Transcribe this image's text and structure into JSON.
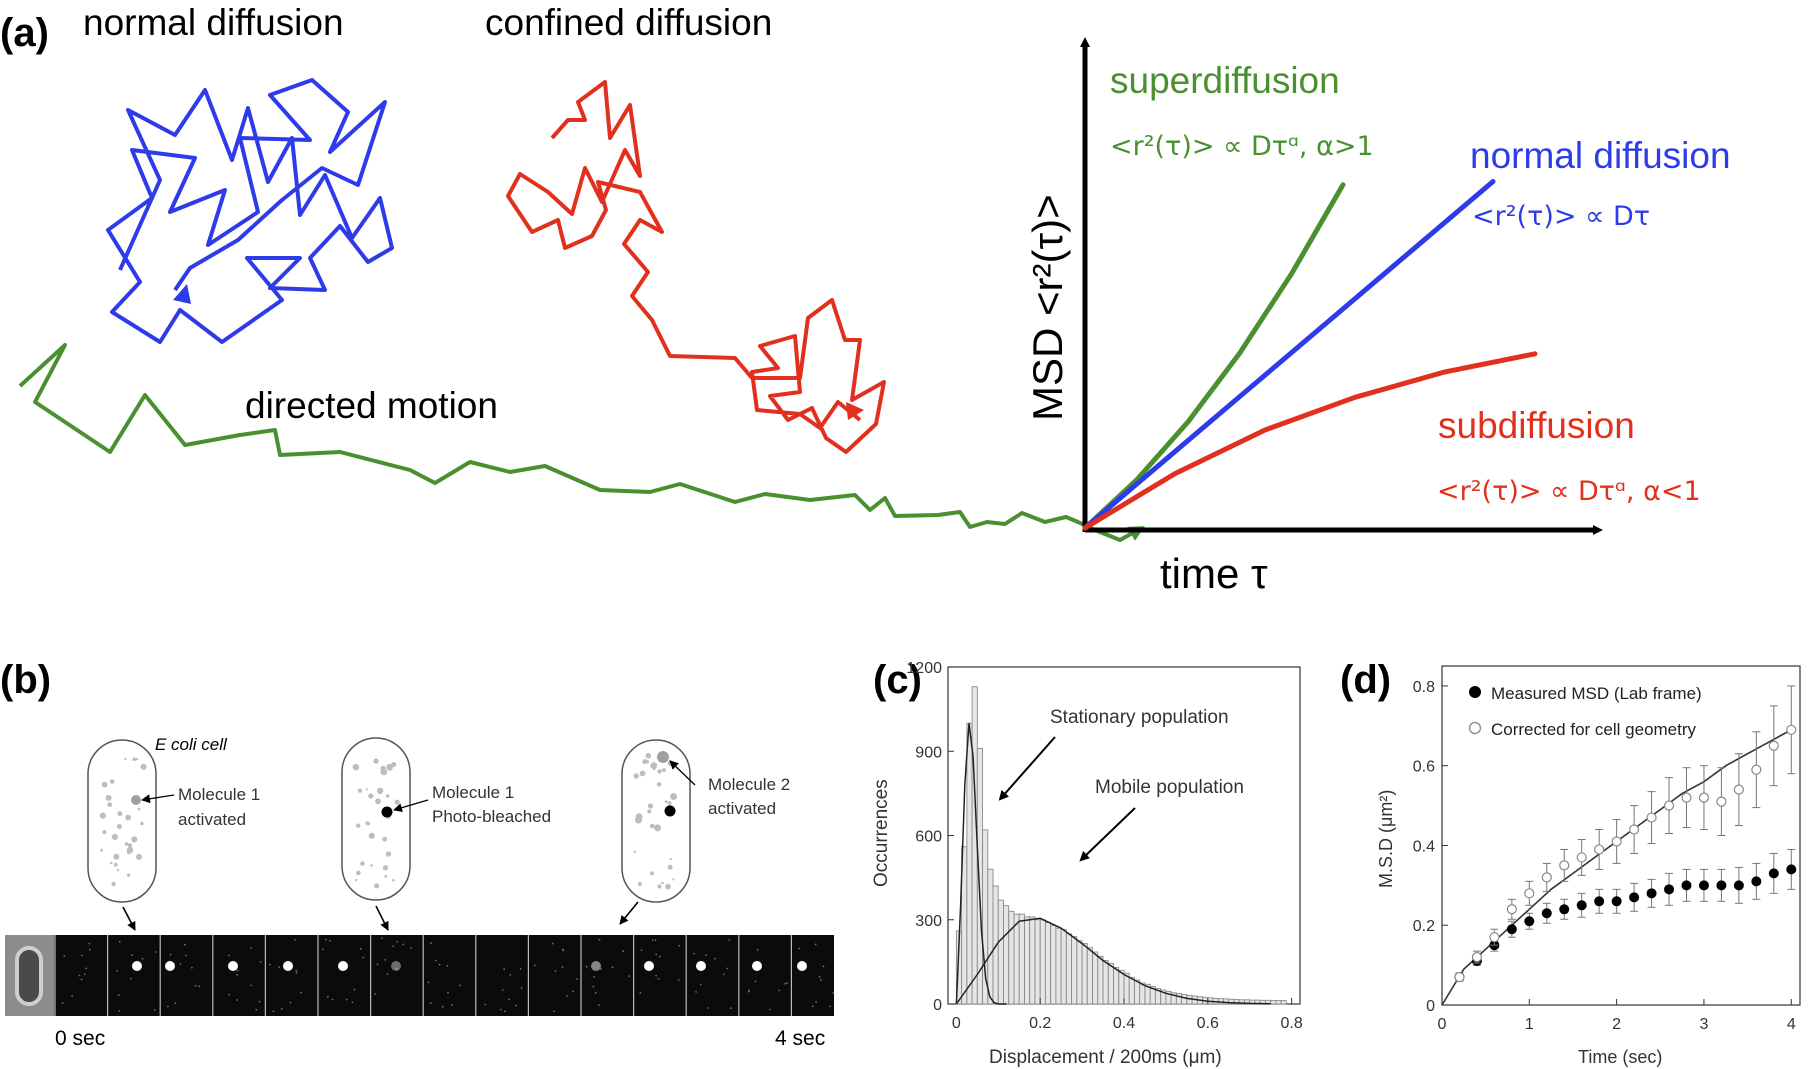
{
  "panel_a": {
    "label": "(a)",
    "walks": {
      "normal": "normal diffusion",
      "confined": "confined diffusion",
      "directed": "directed motion"
    },
    "msd": {
      "y_axis": "MSD <r²(τ)>",
      "x_axis": "time τ",
      "super": {
        "name": "superdiffusion",
        "formula": "<r²(τ)> ∝ Dτᵅ,  α>1",
        "color": "#4a9030"
      },
      "normal": {
        "name": "normal diffusion",
        "formula": "<r²(τ)> ∝ Dτ",
        "color": "#2d3be8"
      },
      "sub": {
        "name": "subdiffusion",
        "formula": "<r²(τ)> ∝ Dτᵅ,  α<1",
        "color": "#e1311e"
      }
    },
    "colors": {
      "normal_walk": "#2d3be8",
      "confined_walk": "#e1311e",
      "directed_walk": "#4a9030"
    }
  },
  "panel_b": {
    "label": "(b)",
    "cell1": {
      "title": "E coli cell",
      "annotation_line1": "Molecule 1",
      "annotation_line2": "activated"
    },
    "cell2": {
      "annotation_line1": "Molecule 1",
      "annotation_line2": "Photo-bleached"
    },
    "cell3": {
      "annotation_line1": "Molecule 2",
      "annotation_line2": "activated"
    },
    "time_start": "0 sec",
    "time_end": "4 sec"
  },
  "panel_c": {
    "label": "(c)",
    "annotation_stationary": "Stationary population",
    "annotation_mobile": "Mobile population"
  },
  "panel_d": {
    "label": "(d)",
    "legend_measured": "Measured MSD (Lab frame)",
    "legend_corrected": "Corrected for cell geometry"
  },
  "chart_data": [
    {
      "type": "line",
      "title": "",
      "xlabel": "time τ",
      "ylabel": "MSD <r²(τ)>",
      "x": [
        0,
        0.2,
        0.4,
        0.6,
        0.8,
        1.0
      ],
      "series": [
        {
          "name": "superdiffusion",
          "values": [
            0.0,
            0.14,
            0.31,
            0.51,
            0.74,
            1.0
          ]
        },
        {
          "name": "normal diffusion",
          "values": [
            0.0,
            0.14,
            0.28,
            0.42,
            0.56,
            0.7
          ]
        },
        {
          "name": "subdiffusion",
          "values": [
            0.0,
            0.15,
            0.27,
            0.36,
            0.43,
            0.48
          ]
        }
      ]
    },
    {
      "type": "bar",
      "title": "",
      "xlabel": "Displacement / 200ms (μm)",
      "ylabel": "Occurrences",
      "xlim": [
        -0.02,
        0.82
      ],
      "ylim": [
        0,
        1200
      ],
      "xticks": [
        "0",
        "0.2",
        "0.4",
        "0.6",
        "0.8"
      ],
      "yticks": [
        "0",
        "300",
        "600",
        "900",
        "1200"
      ],
      "bin_width": 0.0125,
      "categories": [
        0.0,
        0.0125,
        0.025,
        0.0375,
        0.05,
        0.0625,
        0.075,
        0.0875,
        0.1,
        0.1125,
        0.125,
        0.1375,
        0.15,
        0.1625,
        0.175,
        0.1875,
        0.2,
        0.2125,
        0.225,
        0.2375,
        0.25,
        0.2625,
        0.275,
        0.2875,
        0.3,
        0.3125,
        0.325,
        0.3375,
        0.35,
        0.3625,
        0.375,
        0.3875,
        0.4,
        0.4125,
        0.425,
        0.4375,
        0.45,
        0.4625,
        0.475,
        0.4875,
        0.5,
        0.5125,
        0.525,
        0.5375,
        0.55,
        0.5625,
        0.575,
        0.5875,
        0.6,
        0.6125,
        0.625,
        0.6375,
        0.65,
        0.6625,
        0.675,
        0.6875,
        0.7,
        0.7125,
        0.725,
        0.7375,
        0.75,
        0.7625,
        0.775
      ],
      "values": [
        260,
        560,
        1000,
        1130,
        910,
        620,
        480,
        420,
        370,
        350,
        330,
        320,
        320,
        310,
        310,
        300,
        300,
        290,
        280,
        270,
        265,
        250,
        240,
        225,
        215,
        200,
        185,
        170,
        155,
        145,
        130,
        120,
        110,
        95,
        85,
        75,
        70,
        62,
        55,
        50,
        45,
        40,
        37,
        34,
        31,
        28,
        26,
        24,
        22,
        20,
        19,
        18,
        17,
        16,
        15,
        15,
        14,
        14,
        13,
        13,
        12,
        12,
        12
      ],
      "fits": [
        {
          "name": "Stationary population",
          "x": [
            0,
            0.01,
            0.02,
            0.03,
            0.04,
            0.05,
            0.06,
            0.07,
            0.08,
            0.09,
            0.1,
            0.12
          ],
          "values": [
            0,
            350,
            780,
            1000,
            880,
            560,
            260,
            90,
            25,
            5,
            0,
            0
          ]
        },
        {
          "name": "Mobile population",
          "x": [
            0,
            0.05,
            0.1,
            0.15,
            0.2,
            0.25,
            0.3,
            0.35,
            0.4,
            0.45,
            0.5,
            0.55,
            0.6,
            0.65,
            0.7,
            0.75
          ],
          "values": [
            0,
            105,
            220,
            295,
            305,
            270,
            215,
            155,
            105,
            65,
            38,
            20,
            10,
            5,
            2,
            1
          ]
        }
      ]
    },
    {
      "type": "scatter",
      "title": "",
      "xlabel": "Time (sec)",
      "ylabel": "M.S.D (μm²)",
      "xlim": [
        0,
        4.1
      ],
      "ylim": [
        0,
        0.85
      ],
      "xticks": [
        "0",
        "1",
        "2",
        "3",
        "4"
      ],
      "yticks": [
        "0",
        "0.2",
        "0.4",
        "0.6",
        "0.8"
      ],
      "x": [
        0.2,
        0.4,
        0.6,
        0.8,
        1.0,
        1.2,
        1.4,
        1.6,
        1.8,
        2.0,
        2.2,
        2.4,
        2.6,
        2.8,
        3.0,
        3.2,
        3.4,
        3.6,
        3.8,
        4.0
      ],
      "series": [
        {
          "name": "Measured MSD (Lab frame)",
          "values": [
            0.07,
            0.11,
            0.15,
            0.19,
            0.21,
            0.23,
            0.24,
            0.25,
            0.26,
            0.26,
            0.27,
            0.28,
            0.29,
            0.3,
            0.3,
            0.3,
            0.3,
            0.31,
            0.33,
            0.34
          ],
          "err": [
            0.01,
            0.01,
            0.015,
            0.02,
            0.02,
            0.025,
            0.025,
            0.03,
            0.03,
            0.03,
            0.035,
            0.035,
            0.04,
            0.04,
            0.04,
            0.04,
            0.045,
            0.045,
            0.05,
            0.05
          ]
        },
        {
          "name": "Corrected for cell geometry",
          "values": [
            0.07,
            0.12,
            0.17,
            0.24,
            0.28,
            0.32,
            0.35,
            0.37,
            0.39,
            0.41,
            0.44,
            0.47,
            0.5,
            0.52,
            0.52,
            0.51,
            0.54,
            0.59,
            0.65,
            0.69
          ],
          "err": [
            0.01,
            0.015,
            0.02,
            0.025,
            0.03,
            0.035,
            0.04,
            0.045,
            0.05,
            0.055,
            0.06,
            0.065,
            0.07,
            0.075,
            0.08,
            0.085,
            0.09,
            0.095,
            0.1,
            0.11
          ]
        }
      ],
      "fit_values": [
        0.0,
        0.09,
        0.14,
        0.19,
        0.24,
        0.29,
        0.33,
        0.37,
        0.41,
        0.45,
        0.49,
        0.53,
        0.56,
        0.6,
        0.63,
        0.66,
        0.69
      ]
    }
  ]
}
